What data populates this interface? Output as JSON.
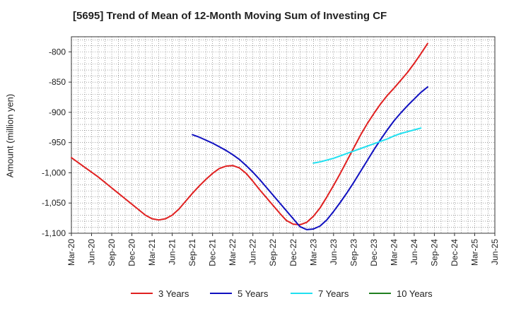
{
  "chart_data": {
    "type": "line",
    "title": "[5695]  Trend of Mean of 12-Month Moving Sum of Investing CF",
    "xlabel": "",
    "ylabel": "Amount (million yen)",
    "ylim": [
      -1100,
      -775
    ],
    "yticks": [
      -800,
      -850,
      -900,
      -950,
      -1000,
      -1050,
      -1100
    ],
    "ytick_labels": [
      "-800",
      "-850",
      "-900",
      "-950",
      "-1,000",
      "-1,050",
      "-1,100"
    ],
    "xtick_labels": [
      "Mar-20",
      "Jun-20",
      "Sep-20",
      "Dec-20",
      "Mar-21",
      "Jun-21",
      "Sep-21",
      "Dec-21",
      "Mar-22",
      "Jun-22",
      "Sep-22",
      "Dec-22",
      "Mar-23",
      "Jun-23",
      "Sep-23",
      "Dec-23",
      "Mar-24",
      "Jun-24",
      "Sep-24",
      "Dec-24",
      "Mar-25",
      "Jun-25"
    ],
    "grid": true,
    "legend_position": "bottom",
    "series": [
      {
        "name": "3 Years",
        "color": "#e02020",
        "x_start": 0,
        "values": [
          -975,
          -983,
          -991,
          -999,
          -1007,
          -1016,
          -1025,
          -1034,
          -1043,
          -1052,
          -1061,
          -1070,
          -1076,
          -1078,
          -1076,
          -1070,
          -1060,
          -1047,
          -1034,
          -1022,
          -1011,
          -1001,
          -993,
          -989,
          -988,
          -992,
          -1001,
          -1014,
          -1028,
          -1041,
          -1054,
          -1067,
          -1079,
          -1085,
          -1086,
          -1082,
          -1072,
          -1058,
          -1040,
          -1021,
          -1001,
          -980,
          -959,
          -938,
          -919,
          -902,
          -886,
          -872,
          -860,
          -847,
          -834,
          -819,
          -803,
          -786
        ]
      },
      {
        "name": "5 Years",
        "color": "#1010c0",
        "x_start": 18,
        "values": [
          -937,
          -941,
          -946,
          -951,
          -957,
          -963,
          -970,
          -978,
          -988,
          -999,
          -1011,
          -1024,
          -1037,
          -1050,
          -1063,
          -1076,
          -1089,
          -1094,
          -1093,
          -1088,
          -1078,
          -1064,
          -1049,
          -1033,
          -1016,
          -998,
          -980,
          -962,
          -945,
          -929,
          -914,
          -901,
          -889,
          -878,
          -867,
          -858
        ]
      },
      {
        "name": "7 Years",
        "color": "#20e0f0",
        "x_start": 36,
        "values": [
          -984,
          -982,
          -979,
          -976,
          -972,
          -968,
          -964,
          -960,
          -956,
          -952,
          -948,
          -944,
          -939,
          -935,
          -932,
          -929,
          -926
        ]
      },
      {
        "name": "10 Years",
        "color": "#208020",
        "x_start": 0,
        "values": []
      }
    ]
  }
}
